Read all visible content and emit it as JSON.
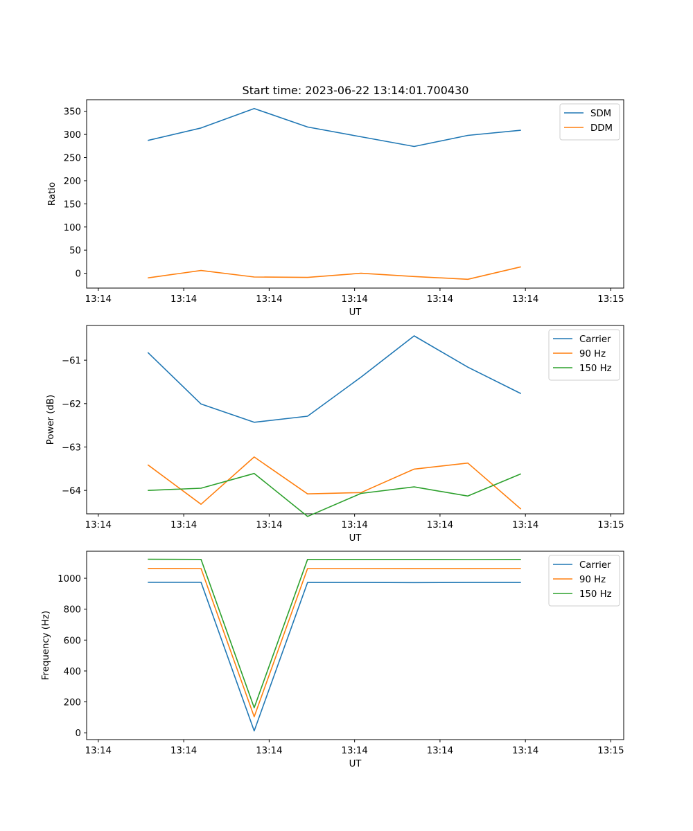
{
  "figure_title": "Start time: 2023-06-22 13:14:01.700430",
  "chart_data": [
    {
      "type": "line",
      "title": "Start time: 2023-06-22 13:14:01.700430",
      "xlabel": "UT",
      "ylabel": "Ratio",
      "x_ticks": [
        "13:14",
        "13:14",
        "13:14",
        "13:14",
        "13:14",
        "13:14",
        "13:15"
      ],
      "xlim": [
        -0.2,
        9.0
      ],
      "y_ticks": [
        0,
        50,
        100,
        150,
        200,
        250,
        300,
        350
      ],
      "ylim": [
        -32,
        375
      ],
      "legend": "top-right",
      "x": [
        0.7,
        1.7,
        2.7,
        3.7,
        4.7,
        5.7,
        6.7,
        7.7
      ],
      "series": [
        {
          "name": "SDM",
          "color": "#1f77b4",
          "values": [
            287,
            314,
            356,
            316,
            295,
            274,
            298,
            309
          ]
        },
        {
          "name": "DDM",
          "color": "#ff7f0e",
          "values": [
            -10,
            6,
            -8,
            -9,
            0,
            -7,
            -13,
            14
          ]
        }
      ]
    },
    {
      "type": "line",
      "xlabel": "UT",
      "ylabel": "Power (dB)",
      "x_ticks": [
        "13:14",
        "13:14",
        "13:14",
        "13:14",
        "13:14",
        "13:14",
        "13:15"
      ],
      "xlim": [
        -0.2,
        9.0
      ],
      "y_ticks": [
        -61,
        -62,
        -63,
        -64
      ],
      "y_tick_labels": [
        "−61",
        "−62",
        "−63",
        "−64"
      ],
      "ylim": [
        -64.54,
        -60.2
      ],
      "legend": "top-right",
      "x": [
        0.7,
        1.7,
        2.7,
        3.7,
        4.7,
        5.7,
        6.7,
        7.7
      ],
      "series": [
        {
          "name": "Carrier",
          "color": "#1f77b4",
          "values": [
            -60.82,
            -62.01,
            -62.43,
            -62.29,
            -61.39,
            -60.44,
            -61.16,
            -61.77
          ]
        },
        {
          "name": "90 Hz",
          "color": "#ff7f0e",
          "values": [
            -63.41,
            -64.32,
            -63.23,
            -64.08,
            -64.05,
            -63.51,
            -63.37,
            -64.43
          ]
        },
        {
          "name": "150 Hz",
          "color": "#2ca02c",
          "values": [
            -64.0,
            -63.95,
            -63.61,
            -64.6,
            -64.07,
            -63.92,
            -64.13,
            -63.62
          ]
        }
      ]
    },
    {
      "type": "line",
      "xlabel": "UT",
      "ylabel": "Frequency (Hz)",
      "x_ticks": [
        "13:14",
        "13:14",
        "13:14",
        "13:14",
        "13:14",
        "13:14",
        "13:15"
      ],
      "xlim": [
        -0.2,
        9.0
      ],
      "y_ticks": [
        0,
        200,
        400,
        600,
        800,
        1000
      ],
      "ylim": [
        -44,
        1175
      ],
      "legend": "top-right",
      "x": [
        0.7,
        1.7,
        2.7,
        3.7,
        4.7,
        5.7,
        6.7,
        7.7
      ],
      "series": [
        {
          "name": "Carrier",
          "color": "#1f77b4",
          "values": [
            974,
            974,
            12,
            973,
            973,
            972,
            973,
            973
          ]
        },
        {
          "name": "90 Hz",
          "color": "#ff7f0e",
          "values": [
            1064,
            1063,
            104,
            1063,
            1063,
            1062,
            1062,
            1063
          ]
        },
        {
          "name": "150 Hz",
          "color": "#2ca02c",
          "values": [
            1123,
            1122,
            162,
            1122,
            1122,
            1122,
            1121,
            1122
          ]
        }
      ]
    }
  ]
}
